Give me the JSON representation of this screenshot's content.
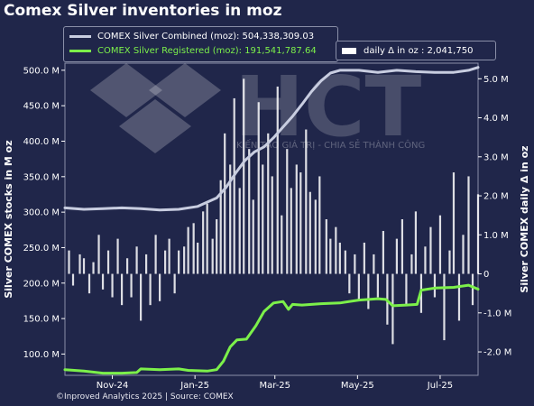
{
  "title": "Comex Silver inventories in moz",
  "footer": "©Inproved Analytics 2025 | Source: COMEX",
  "watermark": {
    "logo_text": "HCT",
    "tagline": "KIẾN TẠO GIÁ TRỊ - CHIA SẺ THÀNH CÔNG"
  },
  "legend": {
    "combined": "COMEX Silver Combined (moz): 504,338,309.03",
    "registered": "COMEX Silver Registered (moz): 191,541,787.64",
    "daily": "daily Δ in oz : 2,041,750"
  },
  "colors": {
    "background": "#20264a",
    "combined": "#c8cde0",
    "registered": "#7cf04a",
    "daily_bar": "#ffffff",
    "text": "#ffffff"
  },
  "chart_data": {
    "type": "line",
    "title": "Comex Silver inventories in moz",
    "x_range": [
      "2024-10-11",
      "2025-08-12"
    ],
    "x_ticks": [
      {
        "date": "2024-11-15",
        "label": "Nov-24"
      },
      {
        "date": "2025-01-15",
        "label": "Jan-25"
      },
      {
        "date": "2025-03-15",
        "label": "Mar-25"
      },
      {
        "date": "2025-05-15",
        "label": "May-25"
      },
      {
        "date": "2025-07-15",
        "label": "Jul-25"
      }
    ],
    "y_left": {
      "label": "Silver COMEX stocks in M oz",
      "range": [
        70,
        510
      ],
      "ticks": [
        100,
        150,
        200,
        250,
        300,
        350,
        400,
        450,
        500
      ],
      "tick_labels": [
        "100.0 M",
        "150.0 M",
        "200.0 M",
        "250.0 M",
        "300.0 M",
        "350.0 M",
        "400.0 M",
        "450.0 M",
        "500.0 M"
      ]
    },
    "y_right": {
      "label": "Silver COMEX daily Δ in oz",
      "range": [
        -2.6,
        5.4
      ],
      "ticks": [
        -2,
        -1,
        0,
        1,
        2,
        3,
        4,
        5
      ],
      "tick_labels": [
        "-2.0 M",
        "-1.0 M",
        "0",
        "1.0 M",
        "2.0 M",
        "3.0 M",
        "4.0 M",
        "5.0 M"
      ]
    },
    "series": [
      {
        "name": "COMEX Silver Combined (moz)",
        "axis": "left",
        "points": [
          [
            "2024-10-11",
            306
          ],
          [
            "2024-10-25",
            304
          ],
          [
            "2024-11-08",
            305
          ],
          [
            "2024-11-22",
            306
          ],
          [
            "2024-12-06",
            305
          ],
          [
            "2024-12-20",
            303
          ],
          [
            "2025-01-03",
            304
          ],
          [
            "2025-01-17",
            308
          ],
          [
            "2025-01-31",
            320
          ],
          [
            "2025-02-07",
            335
          ],
          [
            "2025-02-14",
            355
          ],
          [
            "2025-02-21",
            373
          ],
          [
            "2025-02-28",
            385
          ],
          [
            "2025-03-07",
            392
          ],
          [
            "2025-03-14",
            405
          ],
          [
            "2025-03-21",
            420
          ],
          [
            "2025-03-28",
            435
          ],
          [
            "2025-04-04",
            452
          ],
          [
            "2025-04-11",
            470
          ],
          [
            "2025-04-18",
            485
          ],
          [
            "2025-04-25",
            496
          ],
          [
            "2025-05-02",
            500
          ],
          [
            "2025-05-16",
            500
          ],
          [
            "2025-05-30",
            497
          ],
          [
            "2025-06-13",
            500
          ],
          [
            "2025-06-27",
            498
          ],
          [
            "2025-07-11",
            497
          ],
          [
            "2025-07-25",
            497
          ],
          [
            "2025-08-05",
            500
          ],
          [
            "2025-08-12",
            504
          ]
        ]
      },
      {
        "name": "COMEX Silver Registered (moz)",
        "axis": "left",
        "points": [
          [
            "2024-10-11",
            78
          ],
          [
            "2024-10-25",
            76
          ],
          [
            "2024-11-08",
            73
          ],
          [
            "2024-11-22",
            73
          ],
          [
            "2024-12-03",
            74
          ],
          [
            "2024-12-06",
            79
          ],
          [
            "2024-12-20",
            78
          ],
          [
            "2025-01-03",
            79
          ],
          [
            "2025-01-10",
            77
          ],
          [
            "2025-01-24",
            76
          ],
          [
            "2025-01-31",
            78
          ],
          [
            "2025-02-05",
            90
          ],
          [
            "2025-02-10",
            110
          ],
          [
            "2025-02-15",
            120
          ],
          [
            "2025-02-22",
            121
          ],
          [
            "2025-03-01",
            140
          ],
          [
            "2025-03-07",
            160
          ],
          [
            "2025-03-14",
            172
          ],
          [
            "2025-03-21",
            174
          ],
          [
            "2025-03-25",
            163
          ],
          [
            "2025-03-28",
            170
          ],
          [
            "2025-04-04",
            169
          ],
          [
            "2025-04-18",
            171
          ],
          [
            "2025-05-02",
            172
          ],
          [
            "2025-05-16",
            176
          ],
          [
            "2025-05-30",
            178
          ],
          [
            "2025-06-05",
            177
          ],
          [
            "2025-06-10",
            168
          ],
          [
            "2025-06-20",
            169
          ],
          [
            "2025-06-28",
            170
          ],
          [
            "2025-07-01",
            190
          ],
          [
            "2025-07-11",
            193
          ],
          [
            "2025-07-25",
            194
          ],
          [
            "2025-08-05",
            197
          ],
          [
            "2025-08-12",
            191.5
          ]
        ]
      },
      {
        "name": "daily Δ in oz",
        "axis": "right",
        "kind": "bar",
        "bars": [
          [
            "2024-10-14",
            0.6
          ],
          [
            "2024-10-17",
            -0.3
          ],
          [
            "2024-10-22",
            0.5
          ],
          [
            "2024-10-25",
            0.4
          ],
          [
            "2024-10-29",
            -0.5
          ],
          [
            "2024-11-01",
            0.3
          ],
          [
            "2024-11-05",
            1.0
          ],
          [
            "2024-11-08",
            -0.4
          ],
          [
            "2024-11-12",
            0.6
          ],
          [
            "2024-11-15",
            -0.6
          ],
          [
            "2024-11-19",
            0.9
          ],
          [
            "2024-11-22",
            -0.8
          ],
          [
            "2024-11-26",
            0.4
          ],
          [
            "2024-11-29",
            -0.6
          ],
          [
            "2024-12-03",
            0.7
          ],
          [
            "2024-12-06",
            -1.2
          ],
          [
            "2024-12-10",
            0.5
          ],
          [
            "2024-12-13",
            -0.8
          ],
          [
            "2024-12-17",
            1.0
          ],
          [
            "2024-12-20",
            -0.7
          ],
          [
            "2024-12-24",
            0.6
          ],
          [
            "2024-12-27",
            0.9
          ],
          [
            "2024-12-31",
            -0.5
          ],
          [
            "2025-01-03",
            0.6
          ],
          [
            "2025-01-07",
            0.7
          ],
          [
            "2025-01-10",
            1.2
          ],
          [
            "2025-01-14",
            1.3
          ],
          [
            "2025-01-17",
            0.8
          ],
          [
            "2025-01-21",
            1.6
          ],
          [
            "2025-01-24",
            1.8
          ],
          [
            "2025-01-28",
            0.9
          ],
          [
            "2025-01-31",
            1.4
          ],
          [
            "2025-02-03",
            2.4
          ],
          [
            "2025-02-06",
            3.6
          ],
          [
            "2025-02-10",
            2.8
          ],
          [
            "2025-02-13",
            4.5
          ],
          [
            "2025-02-17",
            2.2
          ],
          [
            "2025-02-20",
            5.0
          ],
          [
            "2025-02-24",
            3.2
          ],
          [
            "2025-02-27",
            1.9
          ],
          [
            "2025-03-03",
            4.4
          ],
          [
            "2025-03-06",
            2.8
          ],
          [
            "2025-03-10",
            3.6
          ],
          [
            "2025-03-13",
            2.5
          ],
          [
            "2025-03-17",
            4.8
          ],
          [
            "2025-03-20",
            1.5
          ],
          [
            "2025-03-24",
            3.2
          ],
          [
            "2025-03-27",
            2.2
          ],
          [
            "2025-03-31",
            2.8
          ],
          [
            "2025-04-03",
            2.6
          ],
          [
            "2025-04-07",
            3.7
          ],
          [
            "2025-04-10",
            2.1
          ],
          [
            "2025-04-14",
            1.9
          ],
          [
            "2025-04-17",
            2.5
          ],
          [
            "2025-04-22",
            1.4
          ],
          [
            "2025-04-25",
            0.9
          ],
          [
            "2025-04-29",
            1.2
          ],
          [
            "2025-05-02",
            0.8
          ],
          [
            "2025-05-06",
            0.6
          ],
          [
            "2025-05-09",
            -0.5
          ],
          [
            "2025-05-13",
            0.5
          ],
          [
            "2025-05-16",
            -0.7
          ],
          [
            "2025-05-20",
            0.8
          ],
          [
            "2025-05-23",
            -0.9
          ],
          [
            "2025-05-27",
            0.5
          ],
          [
            "2025-05-30",
            -0.6
          ],
          [
            "2025-06-03",
            1.1
          ],
          [
            "2025-06-06",
            -1.3
          ],
          [
            "2025-06-10",
            -1.8
          ],
          [
            "2025-06-13",
            0.9
          ],
          [
            "2025-06-17",
            1.4
          ],
          [
            "2025-06-20",
            -0.8
          ],
          [
            "2025-06-24",
            0.5
          ],
          [
            "2025-06-27",
            1.6
          ],
          [
            "2025-07-01",
            -1.0
          ],
          [
            "2025-07-04",
            0.7
          ],
          [
            "2025-07-08",
            1.2
          ],
          [
            "2025-07-11",
            -0.6
          ],
          [
            "2025-07-15",
            1.5
          ],
          [
            "2025-07-18",
            -1.7
          ],
          [
            "2025-07-22",
            0.6
          ],
          [
            "2025-07-25",
            2.6
          ],
          [
            "2025-07-29",
            -1.2
          ],
          [
            "2025-08-01",
            1.0
          ],
          [
            "2025-08-05",
            2.5
          ],
          [
            "2025-08-08",
            -0.8
          ],
          [
            "2025-08-12",
            2.04
          ]
        ]
      }
    ],
    "grid": false,
    "legend_position": "top"
  }
}
